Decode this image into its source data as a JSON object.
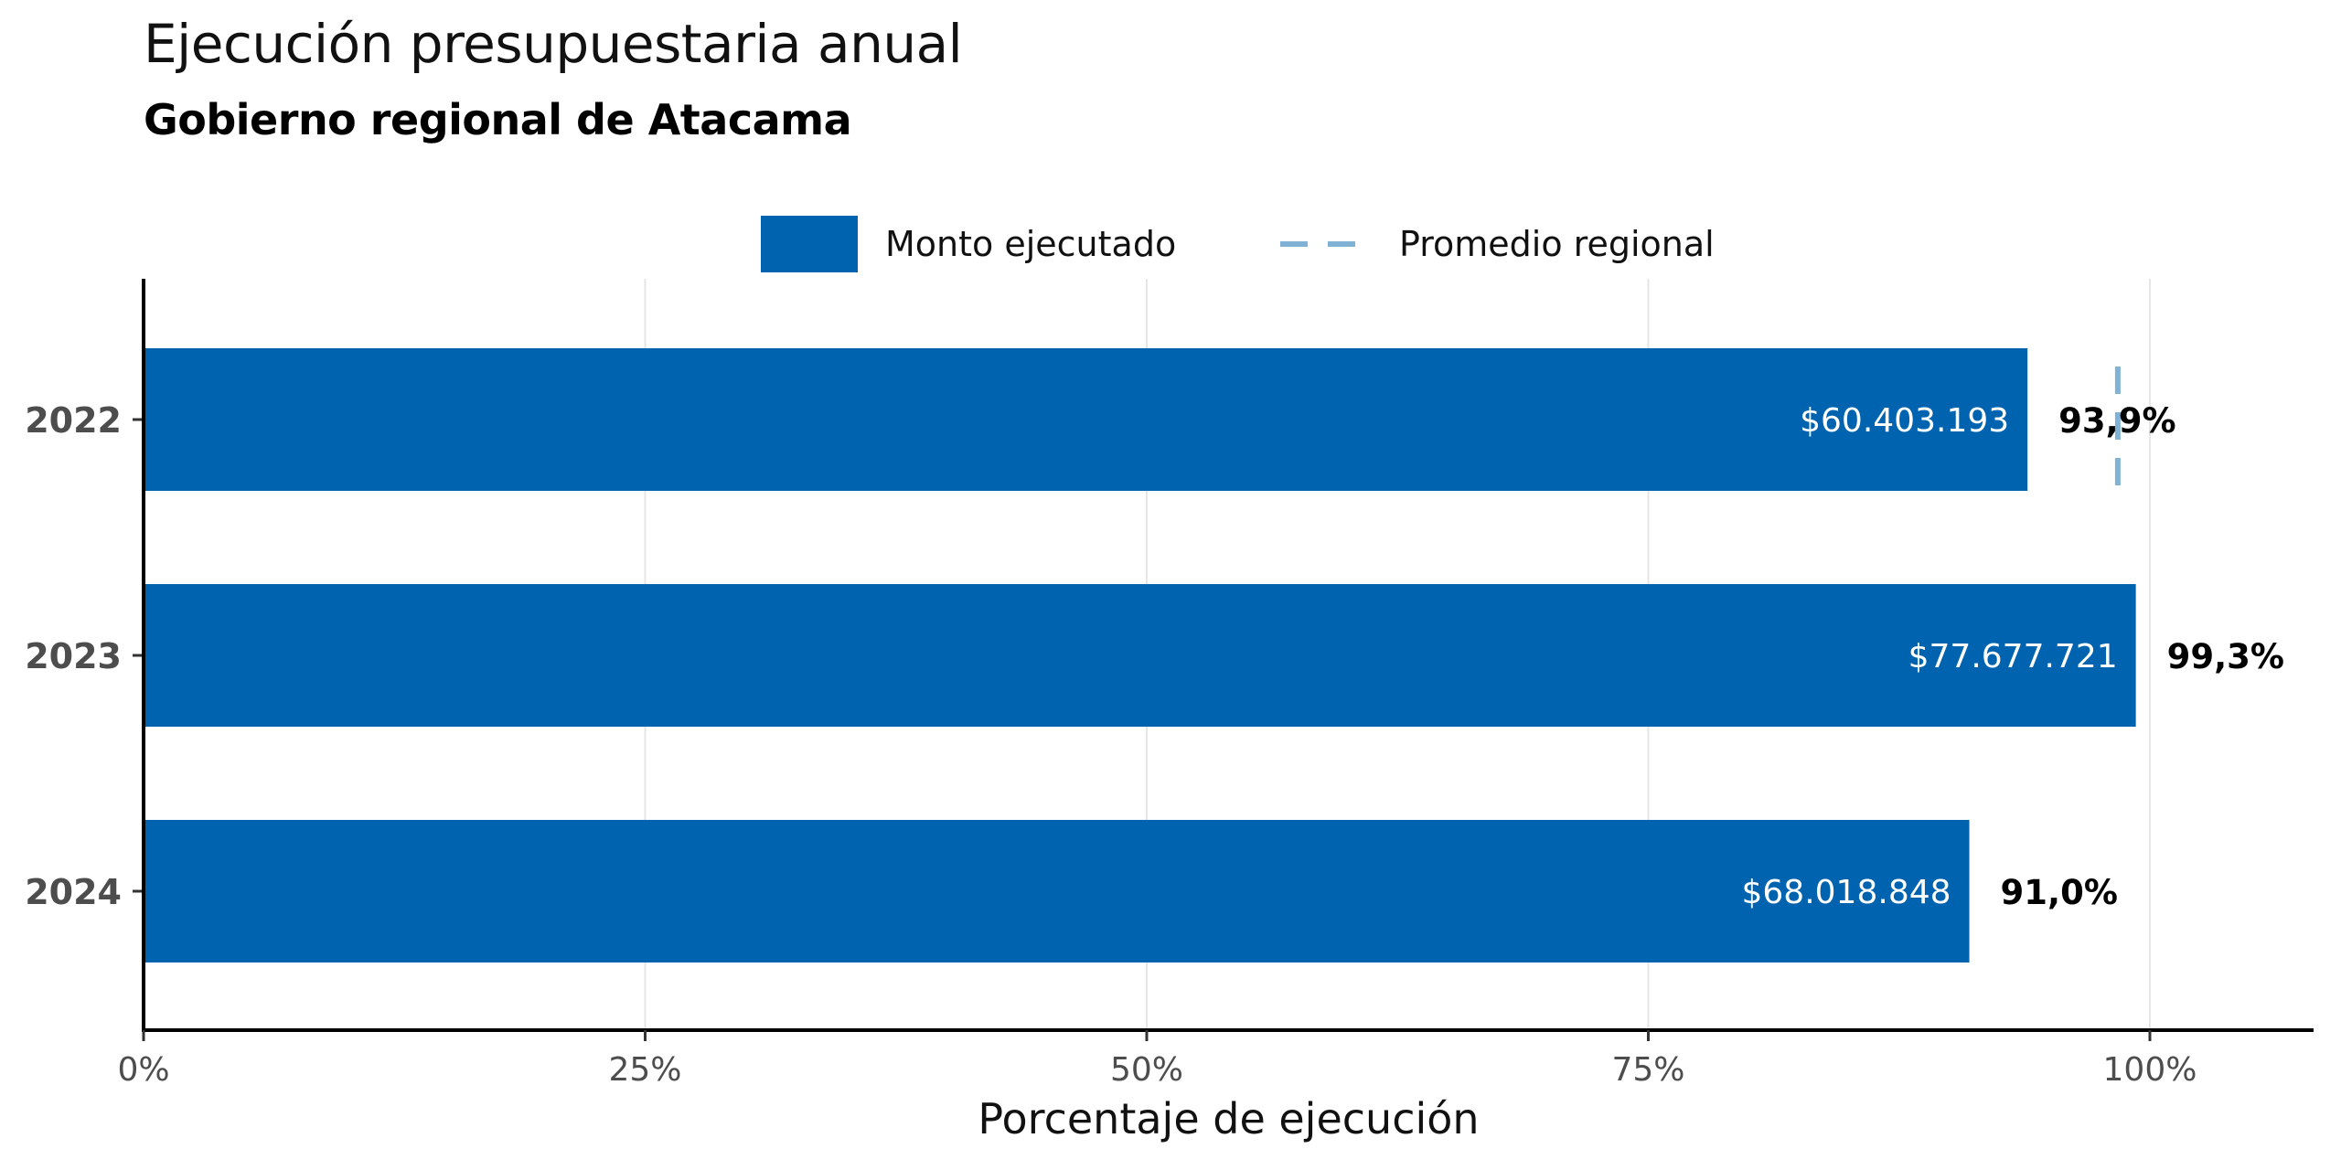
{
  "chart_data": {
    "type": "bar",
    "orientation": "horizontal",
    "title": "Ejecución presupuestaria anual",
    "subtitle": "Gobierno regional de Atacama",
    "xlabel": "Porcentaje de ejecución",
    "ylabel": "",
    "xlim": [
      0,
      108
    ],
    "xticks": [
      {
        "value": 0,
        "label": "0%"
      },
      {
        "value": 25,
        "label": "25%"
      },
      {
        "value": 50,
        "label": "50%"
      },
      {
        "value": 75,
        "label": "75%"
      },
      {
        "value": 100,
        "label": "100%"
      }
    ],
    "categories": [
      "2022",
      "2023",
      "2024"
    ],
    "series": [
      {
        "name": "Monto ejecutado",
        "values": [
          93.9,
          99.3,
          91.0
        ],
        "value_labels": [
          "93,9%",
          "99,3%",
          "91,0%"
        ],
        "amount_labels": [
          "$60.403.193",
          "$77.677.721",
          "$68.018.848"
        ],
        "color": "#0063b0"
      },
      {
        "name": "Promedio regional",
        "style": "dashed",
        "values": [
          98.4,
          null,
          null
        ],
        "color": "#7fb2d5"
      }
    ],
    "legend": {
      "position": "top",
      "items": [
        {
          "label": "Monto ejecutado",
          "kind": "bar",
          "color": "#0063b0"
        },
        {
          "label": "Promedio regional",
          "kind": "dashed-line",
          "color": "#7fb2d5"
        }
      ]
    },
    "grid": {
      "vertical": true,
      "horizontal": false
    }
  }
}
